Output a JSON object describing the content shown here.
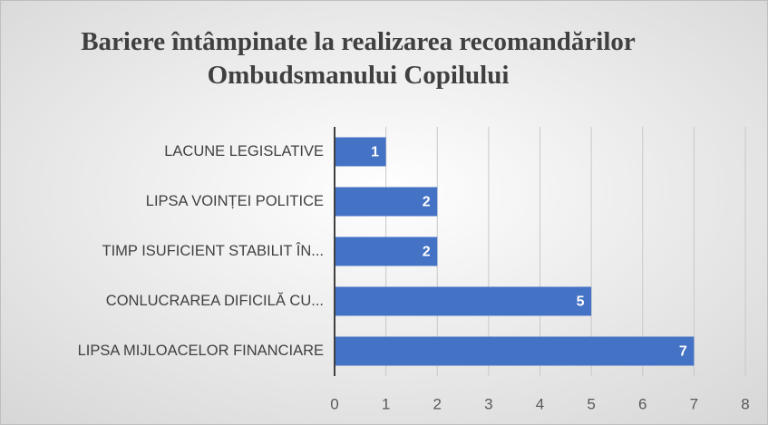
{
  "chart_data": {
    "type": "bar",
    "orientation": "horizontal",
    "title": "Bariere întâmpinate la realizarea recomandărilor Ombudsmanului Copilului",
    "categories": [
      "LACUNE LEGISLATIVE",
      "LIPSA VOINȚEI POLITICE",
      "TIMP ISUFICIENT STABILIT ÎN...",
      "CONLUCRAREA DIFICILĂ CU...",
      "LIPSA MIJLOACELOR FINANCIARE"
    ],
    "values": [
      1,
      2,
      2,
      5,
      7
    ],
    "color": "#4472c4",
    "xlim": [
      0,
      8
    ],
    "xticks": [
      0,
      1,
      2,
      3,
      4,
      5,
      6,
      7,
      8
    ],
    "grid": true
  }
}
